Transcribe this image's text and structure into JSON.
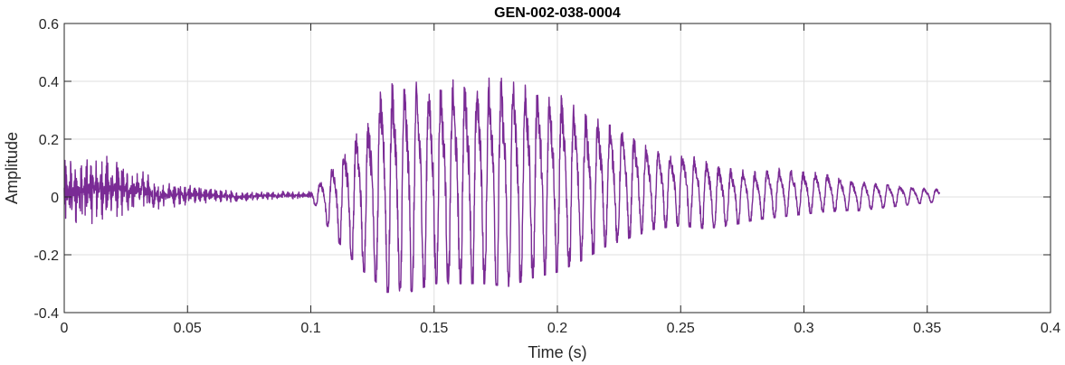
{
  "chart_data": {
    "type": "line",
    "title": "GEN-002-038-0004",
    "xlabel": "Time (s)",
    "ylabel": "Amplitude",
    "xlim": [
      0,
      0.4
    ],
    "ylim": [
      -0.4,
      0.6
    ],
    "xticks": [
      0,
      0.05,
      0.1,
      0.15,
      0.2,
      0.25,
      0.3,
      0.35,
      0.4
    ],
    "yticks": [
      -0.4,
      -0.2,
      0,
      0.2,
      0.4,
      0.6
    ],
    "xtick_labels": [
      "0",
      "0.05",
      "0.1",
      "0.15",
      "0.2",
      "0.25",
      "0.3",
      "0.35",
      "0.4"
    ],
    "ytick_labels": [
      "-0.4",
      "-0.2",
      "0",
      "0.2",
      "0.4",
      "0.6"
    ],
    "grid": true,
    "series": [
      {
        "color": "#7a2b95",
        "signal_start": 0,
        "signal_end": 0.355,
        "envelope": {
          "t": [
            0,
            0.01,
            0.02,
            0.03,
            0.04,
            0.05,
            0.06,
            0.07,
            0.08,
            0.09,
            0.098,
            0.102,
            0.108,
            0.115,
            0.12,
            0.125,
            0.13,
            0.14,
            0.15,
            0.16,
            0.17,
            0.18,
            0.19,
            0.2,
            0.21,
            0.22,
            0.23,
            0.24,
            0.25,
            0.26,
            0.27,
            0.28,
            0.29,
            0.3,
            0.31,
            0.32,
            0.33,
            0.34,
            0.35,
            0.355
          ],
          "max": [
            0.14,
            0.16,
            0.14,
            0.1,
            0.05,
            0.05,
            0.03,
            0.02,
            0.02,
            0.02,
            0.02,
            0.04,
            0.1,
            0.2,
            0.24,
            0.3,
            0.41,
            0.4,
            0.4,
            0.41,
            0.41,
            0.42,
            0.4,
            0.37,
            0.3,
            0.27,
            0.22,
            0.16,
            0.16,
            0.13,
            0.1,
            0.09,
            0.1,
            0.09,
            0.08,
            0.06,
            0.05,
            0.04,
            0.03,
            0.03
          ],
          "min": [
            -0.12,
            -0.11,
            -0.08,
            -0.06,
            -0.04,
            -0.03,
            -0.02,
            -0.02,
            -0.01,
            -0.01,
            -0.01,
            -0.03,
            -0.12,
            -0.2,
            -0.25,
            -0.28,
            -0.33,
            -0.33,
            -0.3,
            -0.3,
            -0.3,
            -0.31,
            -0.28,
            -0.26,
            -0.22,
            -0.17,
            -0.14,
            -0.11,
            -0.1,
            -0.11,
            -0.1,
            -0.08,
            -0.07,
            -0.06,
            -0.05,
            -0.05,
            -0.04,
            -0.03,
            -0.02,
            -0.02
          ]
        },
        "dominant_period_s": 0.0049
      }
    ]
  }
}
